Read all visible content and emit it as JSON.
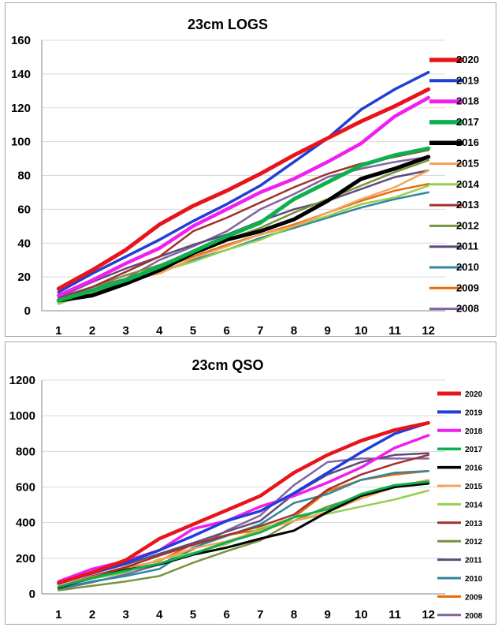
{
  "colors": {
    "2020": "#e8141b",
    "2019": "#1f3fd6",
    "2018": "#f01ef0",
    "2017": "#0eb04e",
    "2016": "#000000",
    "2015": "#f4a45c",
    "2014": "#92d050",
    "2013": "#a0322e",
    "2012": "#77933c",
    "2011": "#604a7b",
    "2010": "#31859c",
    "2009": "#e46c0a",
    "2008": "#8064a2"
  },
  "chart_data": [
    {
      "type": "line",
      "title": "23cm LOGS",
      "xlabel": "",
      "ylabel": "",
      "x": [
        1,
        2,
        3,
        4,
        5,
        6,
        7,
        8,
        9,
        10,
        11,
        12
      ],
      "xticks": [
        "1",
        "2",
        "3",
        "4",
        "5",
        "6",
        "7",
        "8",
        "9",
        "10",
        "11",
        "12"
      ],
      "yticks": [
        "0",
        "20",
        "40",
        "60",
        "80",
        "100",
        "120",
        "140",
        "160"
      ],
      "ylim": [
        0,
        160
      ],
      "grid": "horizontal",
      "legend": "right",
      "series": [
        {
          "name": "2020",
          "values": [
            13,
            24,
            36,
            51,
            62,
            71,
            81,
            92,
            102,
            112,
            121,
            131
          ]
        },
        {
          "name": "2019",
          "values": [
            11,
            22,
            32,
            42,
            53,
            63,
            74,
            88,
            102,
            119,
            131,
            141
          ]
        },
        {
          "name": "2018",
          "values": [
            9,
            18,
            28,
            37,
            50,
            60,
            70,
            78,
            88,
            99,
            115,
            126
          ]
        },
        {
          "name": "2017",
          "values": [
            6,
            12,
            18,
            26,
            35,
            44,
            52,
            66,
            76,
            86,
            92,
            96
          ]
        },
        {
          "name": "2016",
          "values": [
            6,
            9,
            16,
            24,
            34,
            42,
            47,
            54,
            65,
            78,
            84,
            91
          ]
        },
        {
          "name": "2015",
          "values": [
            5,
            12,
            18,
            22,
            31,
            38,
            45,
            50,
            58,
            66,
            73,
            83
          ]
        },
        {
          "name": "2014",
          "values": [
            4,
            11,
            17,
            23,
            29,
            36,
            42,
            50,
            56,
            63,
            67,
            74
          ]
        },
        {
          "name": "2013",
          "values": [
            7,
            14,
            23,
            32,
            47,
            55,
            64,
            73,
            81,
            87,
            91,
            95
          ]
        },
        {
          "name": "2012",
          "values": [
            7,
            14,
            21,
            27,
            35,
            42,
            49,
            58,
            66,
            74,
            82,
            89
          ]
        },
        {
          "name": "2011",
          "values": [
            8,
            17,
            25,
            32,
            39,
            45,
            53,
            60,
            65,
            72,
            79,
            83
          ]
        },
        {
          "name": "2010",
          "values": [
            5,
            10,
            16,
            23,
            30,
            36,
            43,
            49,
            55,
            61,
            66,
            70
          ]
        },
        {
          "name": "2009",
          "values": [
            6,
            12,
            17,
            25,
            32,
            39,
            45,
            51,
            58,
            65,
            71,
            75
          ]
        },
        {
          "name": "2008",
          "values": [
            8,
            14,
            19,
            30,
            38,
            47,
            60,
            69,
            79,
            84,
            88,
            91
          ]
        }
      ]
    },
    {
      "type": "line",
      "title": "23cm QSO",
      "xlabel": "",
      "ylabel": "",
      "x": [
        1,
        2,
        3,
        4,
        5,
        6,
        7,
        8,
        9,
        10,
        11,
        12
      ],
      "xticks": [
        "1",
        "2",
        "3",
        "4",
        "5",
        "6",
        "7",
        "8",
        "9",
        "10",
        "11",
        "12"
      ],
      "yticks": [
        "0",
        "200",
        "400",
        "600",
        "800",
        "1000",
        "1200"
      ],
      "ylim": [
        0,
        1200
      ],
      "grid": "horizontal",
      "legend": "right",
      "series": [
        {
          "name": "2020",
          "values": [
            60,
            120,
            190,
            310,
            390,
            470,
            550,
            680,
            780,
            860,
            920,
            960
          ]
        },
        {
          "name": "2019",
          "values": [
            60,
            115,
            175,
            245,
            325,
            410,
            465,
            565,
            680,
            795,
            900,
            960
          ]
        },
        {
          "name": "2018",
          "values": [
            70,
            140,
            185,
            245,
            365,
            410,
            490,
            550,
            625,
            710,
            820,
            890
          ]
        },
        {
          "name": "2017",
          "values": [
            40,
            90,
            130,
            170,
            225,
            290,
            345,
            430,
            475,
            560,
            610,
            630
          ]
        },
        {
          "name": "2016",
          "values": [
            35,
            90,
            135,
            165,
            220,
            260,
            310,
            355,
            460,
            550,
            600,
            620
          ]
        },
        {
          "name": "2015",
          "values": [
            40,
            95,
            135,
            190,
            255,
            295,
            355,
            410,
            460,
            535,
            600,
            640
          ]
        },
        {
          "name": "2014",
          "values": [
            40,
            85,
            120,
            195,
            230,
            280,
            370,
            410,
            450,
            490,
            530,
            580
          ]
        },
        {
          "name": "2013",
          "values": [
            40,
            100,
            150,
            215,
            275,
            330,
            380,
            445,
            585,
            670,
            730,
            780
          ]
        },
        {
          "name": "2012",
          "values": [
            20,
            45,
            70,
            100,
            175,
            240,
            300,
            410,
            490,
            550,
            600,
            620
          ]
        },
        {
          "name": "2011",
          "values": [
            55,
            115,
            165,
            225,
            285,
            350,
            410,
            560,
            670,
            740,
            780,
            790
          ]
        },
        {
          "name": "2010",
          "values": [
            30,
            70,
            100,
            140,
            260,
            325,
            390,
            510,
            560,
            640,
            680,
            690
          ]
        },
        {
          "name": "2009",
          "values": [
            40,
            90,
            145,
            185,
            280,
            330,
            360,
            430,
            575,
            640,
            670,
            690
          ]
        },
        {
          "name": "2008",
          "values": [
            25,
            65,
            110,
            165,
            250,
            355,
            440,
            610,
            740,
            760,
            760,
            760
          ]
        }
      ]
    }
  ]
}
